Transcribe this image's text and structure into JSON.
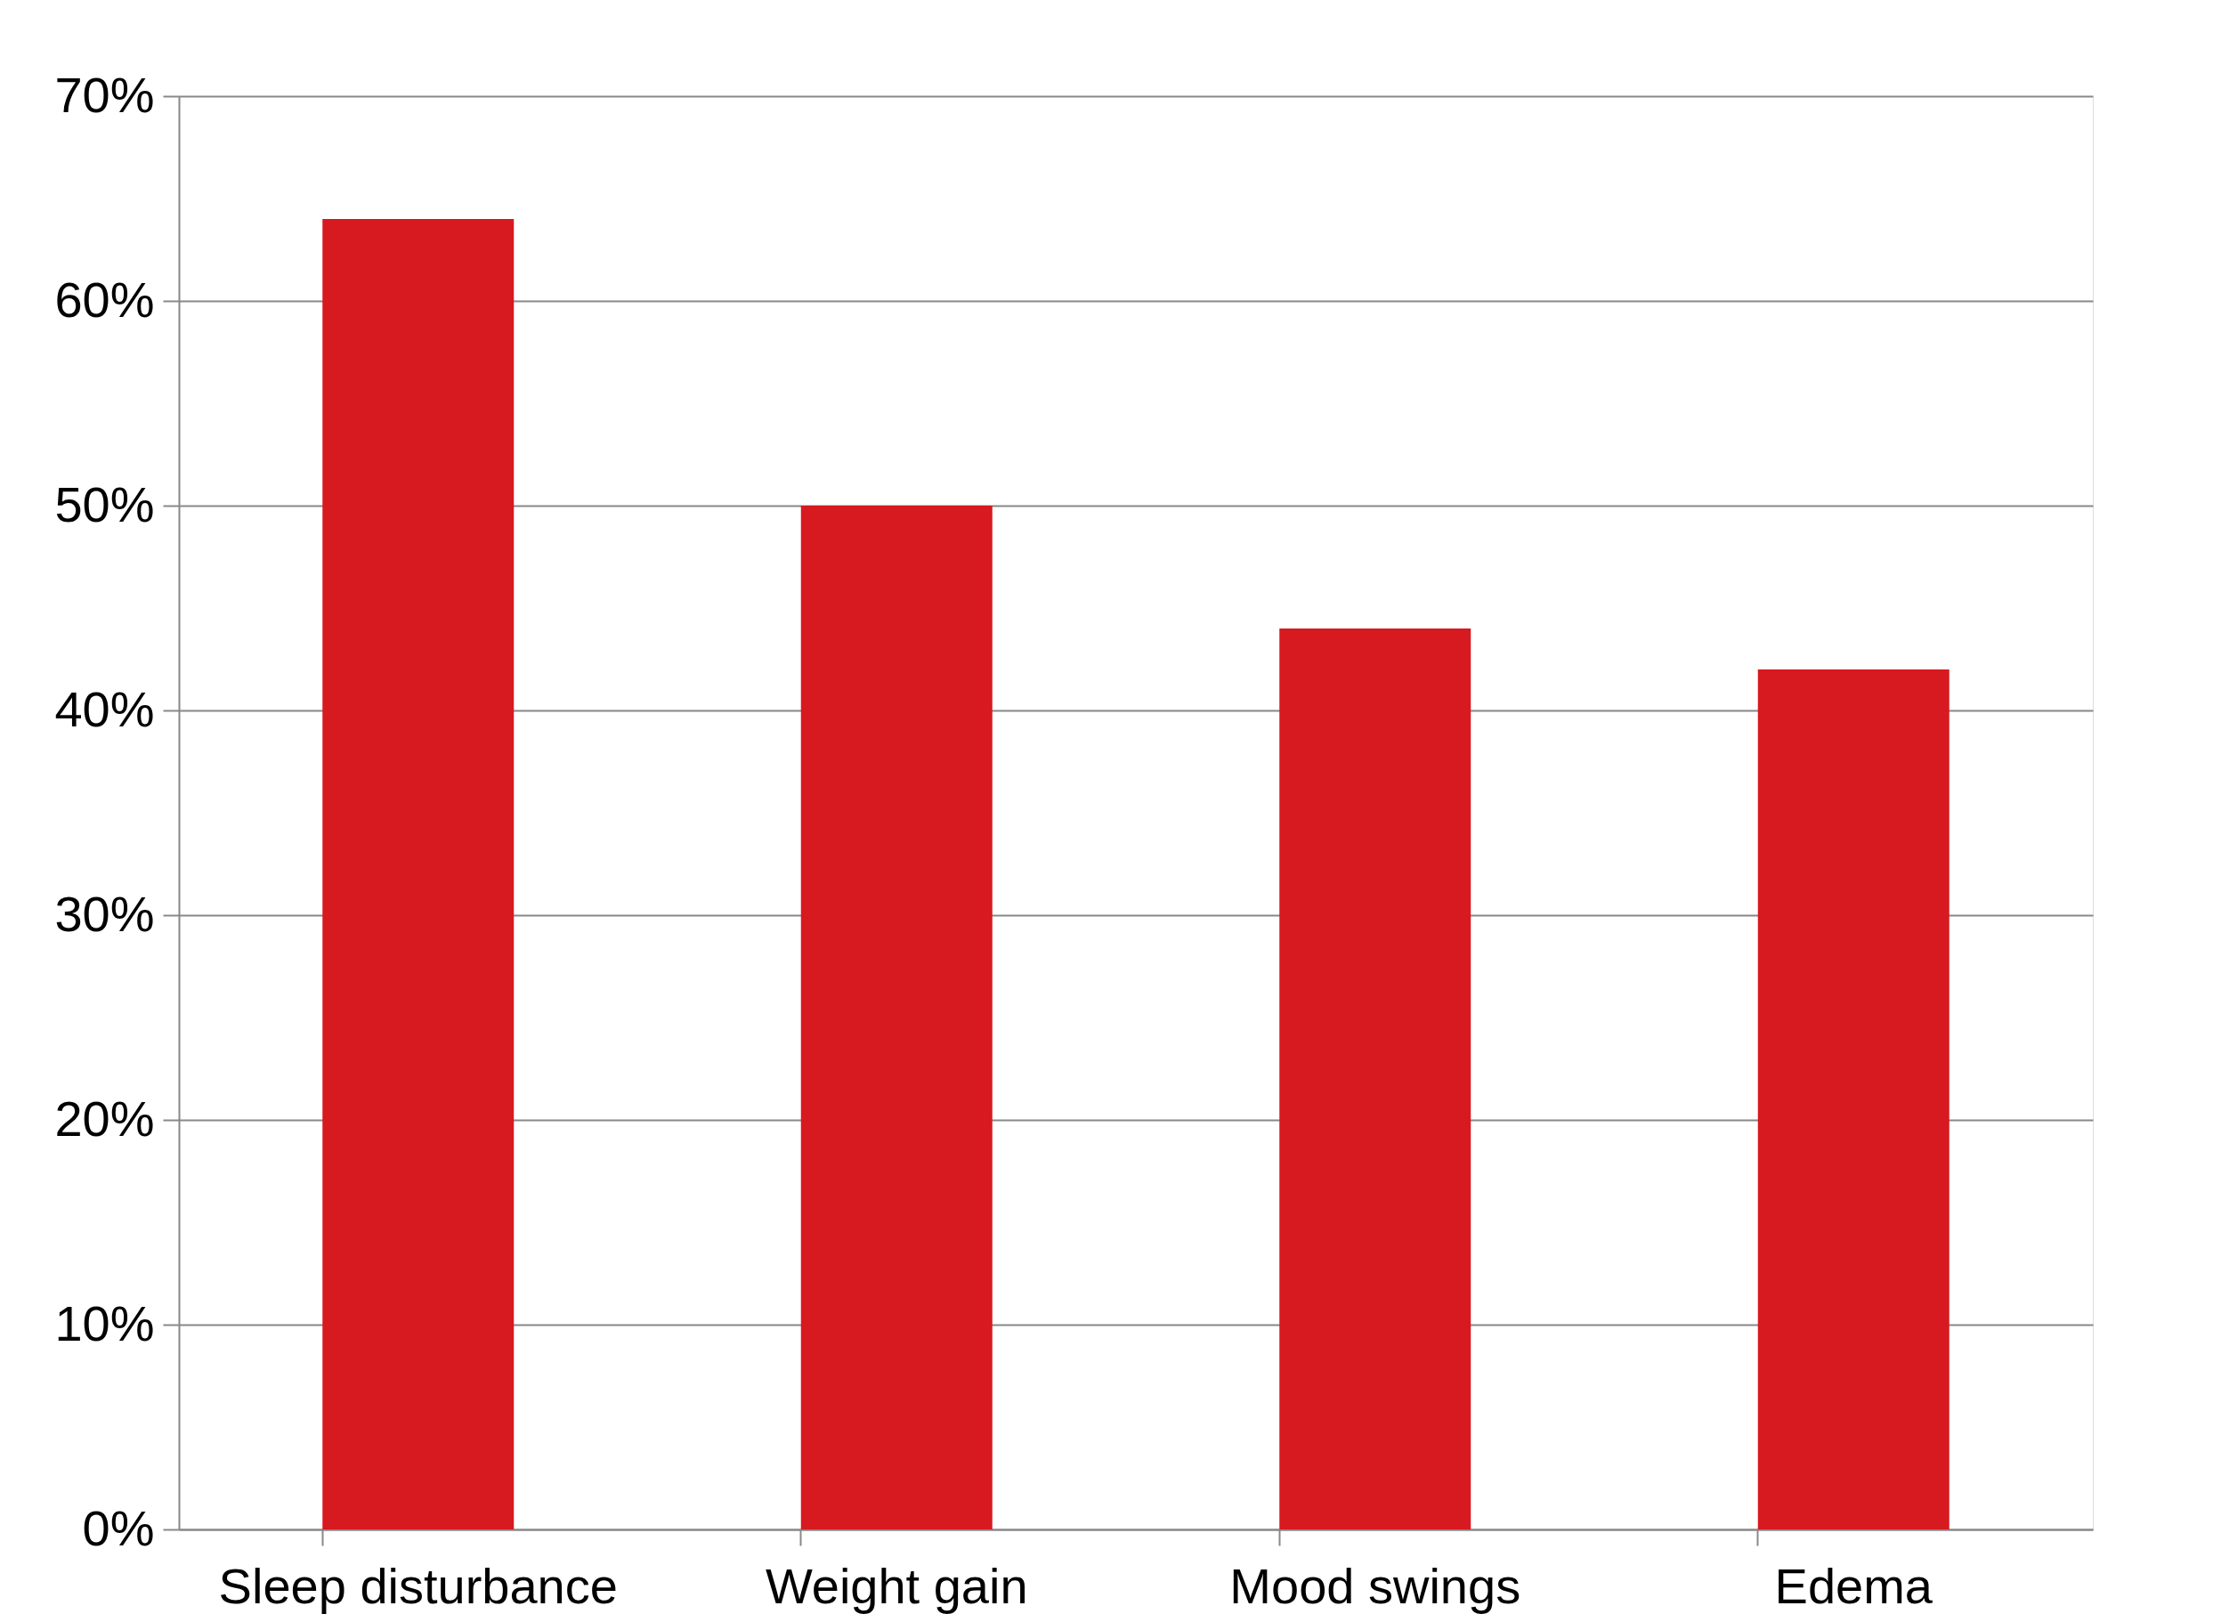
{
  "chart_data": {
    "type": "bar",
    "categories": [
      "Sleep disturbance",
      "Weight gain",
      "Mood swings",
      "Edema"
    ],
    "values": [
      64,
      50,
      44,
      42
    ],
    "color": "#d71920",
    "ylim": [
      0,
      70
    ],
    "yticks": [
      {
        "value": 0,
        "label": "0%"
      },
      {
        "value": 10,
        "label": "10%"
      },
      {
        "value": 20,
        "label": "20%"
      },
      {
        "value": 30,
        "label": "30%"
      },
      {
        "value": 40,
        "label": "40%"
      },
      {
        "value": 50,
        "label": "50%"
      },
      {
        "value": 60,
        "label": "60%"
      },
      {
        "value": 70,
        "label": "70%"
      }
    ],
    "grid": "y"
  }
}
